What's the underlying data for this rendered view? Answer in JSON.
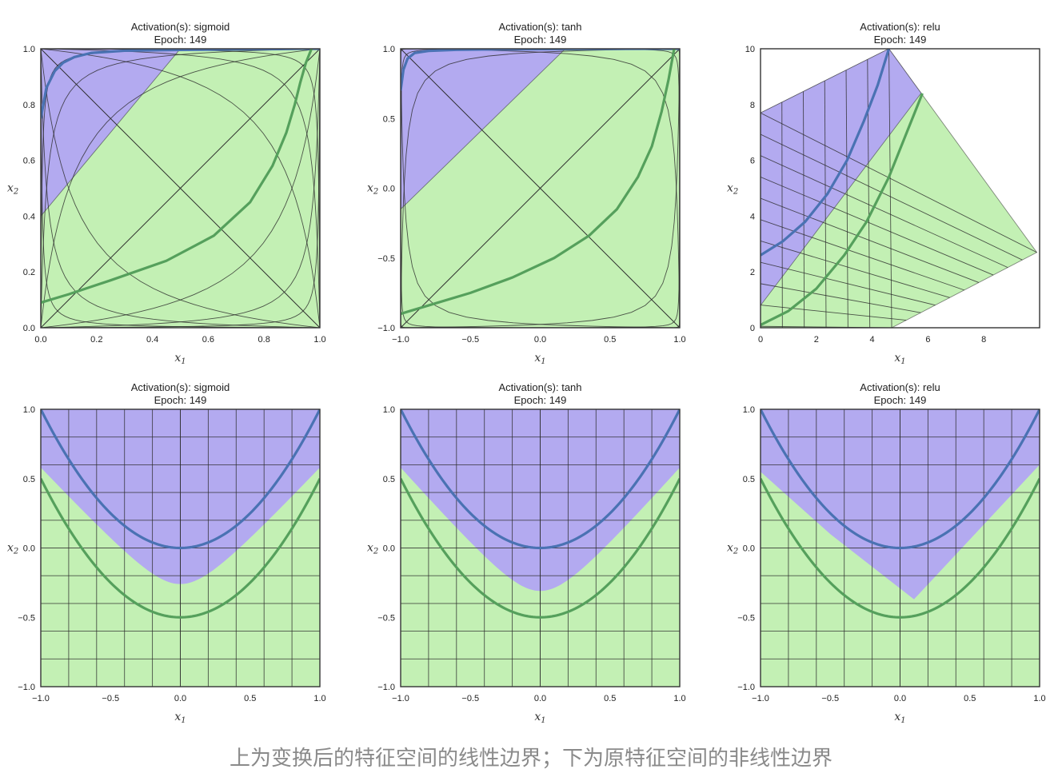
{
  "caption": "上为变换后的特征空间的线性边界；下为原特征空间的非线性边界",
  "colors": {
    "class_blue_region": "#b3aaf0",
    "class_green_region": "#c3f0b4",
    "blue_curve": "#4a72b3",
    "green_curve": "#55a05c",
    "grid_line": "#2b2b2b",
    "frame": "#333333"
  },
  "chart_data": [
    {
      "id": "top-sigmoid",
      "type": "line",
      "space": "transformed",
      "title_line1": "Activation(s): sigmoid",
      "title_line2": "Epoch: 149",
      "xlabel": "x",
      "ylabel": "x",
      "xlim": [
        0,
        1
      ],
      "ylim": [
        0,
        1
      ],
      "xticks": [
        0.0,
        0.2,
        0.4,
        0.6,
        0.8,
        1.0
      ],
      "yticks": [
        0.0,
        0.2,
        0.4,
        0.6,
        0.8,
        1.0
      ],
      "xtick_labels": [
        "0.0",
        "0.2",
        "0.4",
        "0.6",
        "0.8",
        "1.0"
      ],
      "ytick_labels": [
        "0.0",
        "0.2",
        "0.4",
        "0.6",
        "0.8",
        "1.0"
      ],
      "boundary": [
        [
          0,
          0.4
        ],
        [
          0.5,
          1
        ]
      ],
      "blue_region_side": "upper-left",
      "series": [
        {
          "name": "blue-class-curve",
          "x": [
            0.0,
            0.02,
            0.05,
            0.08,
            0.12,
            0.18,
            0.3,
            0.5,
            0.7,
            0.85,
            0.93,
            0.97,
            1.0
          ],
          "y": [
            0.75,
            0.86,
            0.92,
            0.95,
            0.97,
            0.985,
            0.993,
            0.996,
            0.998,
            0.999,
            1.0,
            1.0,
            1.0
          ]
        },
        {
          "name": "green-class-curve",
          "x": [
            0.0,
            0.1,
            0.25,
            0.45,
            0.62,
            0.75,
            0.83,
            0.88,
            0.91,
            0.93,
            0.95,
            0.97
          ],
          "y": [
            0.09,
            0.12,
            0.17,
            0.24,
            0.33,
            0.45,
            0.58,
            0.7,
            0.8,
            0.88,
            0.95,
            1.0
          ]
        }
      ]
    },
    {
      "id": "top-tanh",
      "type": "line",
      "space": "transformed",
      "title_line1": "Activation(s): tanh",
      "title_line2": "Epoch: 149",
      "xlabel": "x",
      "ylabel": "x",
      "xlim": [
        -1,
        1
      ],
      "ylim": [
        -1,
        1
      ],
      "xticks": [
        -1.0,
        -0.5,
        0.0,
        0.5,
        1.0
      ],
      "yticks": [
        -1.0,
        -0.5,
        0.0,
        0.5,
        1.0
      ],
      "xtick_labels": [
        "−1.0",
        "−0.5",
        "0.0",
        "0.5",
        "1.0"
      ],
      "ytick_labels": [
        "−1.0",
        "−0.5",
        "0.0",
        "0.5",
        "1.0"
      ],
      "boundary": [
        [
          -1,
          -0.15
        ],
        [
          0.18,
          1
        ]
      ],
      "blue_region_side": "upper-left",
      "series": [
        {
          "name": "blue-class-curve",
          "x": [
            -1.0,
            -0.98,
            -0.95,
            -0.9,
            -0.8,
            -0.6,
            -0.3,
            0.0,
            0.4,
            0.8,
            1.0
          ],
          "y": [
            0.7,
            0.85,
            0.93,
            0.97,
            0.985,
            0.993,
            0.996,
            0.998,
            0.999,
            1.0,
            1.0
          ]
        },
        {
          "name": "green-class-curve",
          "x": [
            -1.0,
            -0.8,
            -0.5,
            -0.2,
            0.1,
            0.35,
            0.55,
            0.7,
            0.8,
            0.87,
            0.92,
            0.96
          ],
          "y": [
            -0.9,
            -0.84,
            -0.75,
            -0.64,
            -0.5,
            -0.34,
            -0.15,
            0.08,
            0.3,
            0.55,
            0.78,
            1.0
          ]
        }
      ]
    },
    {
      "id": "top-relu",
      "type": "line",
      "space": "transformed",
      "title_line1": "Activation(s): relu",
      "title_line2": "Epoch: 149",
      "xlabel": "x",
      "ylabel": "x",
      "xlim": [
        0,
        10
      ],
      "ylim": [
        0,
        10
      ],
      "xticks": [
        0,
        2,
        4,
        6,
        8
      ],
      "yticks": [
        0,
        2,
        4,
        6,
        8,
        10
      ],
      "xtick_labels": [
        "0",
        "2",
        "4",
        "6",
        "8"
      ],
      "ytick_labels": [
        "0",
        "2",
        "4",
        "6",
        "8",
        "10"
      ],
      "boundary": [
        [
          0,
          0.8
        ],
        [
          5.9,
          8.6
        ]
      ],
      "blue_region_side": "upper-left",
      "series": [
        {
          "name": "blue-class-curve",
          "x": [
            0,
            0.8,
            1.6,
            2.4,
            3.1,
            3.7,
            4.2,
            4.6
          ],
          "y": [
            2.6,
            3.1,
            3.8,
            4.8,
            6.0,
            7.4,
            8.7,
            10.0
          ]
        },
        {
          "name": "green-class-curve",
          "x": [
            0,
            1.0,
            2.0,
            3.0,
            3.8,
            4.6,
            5.2,
            5.8
          ],
          "y": [
            0.1,
            0.6,
            1.4,
            2.6,
            3.8,
            5.4,
            6.9,
            8.4
          ]
        }
      ]
    },
    {
      "id": "bottom-sigmoid",
      "type": "line",
      "space": "original",
      "title_line1": "Activation(s): sigmoid",
      "title_line2": "Epoch: 149",
      "xlabel": "x",
      "ylabel": "x",
      "xlim": [
        -1,
        1
      ],
      "ylim": [
        -1,
        1
      ],
      "xticks": [
        -1.0,
        -0.5,
        0.0,
        0.5,
        1.0
      ],
      "yticks": [
        -1.0,
        -0.5,
        0.0,
        0.5,
        1.0
      ],
      "xtick_labels": [
        "−1.0",
        "−0.5",
        "0.0",
        "0.5",
        "1.0"
      ],
      "ytick_labels": [
        "−1.0",
        "−0.5",
        "0.0",
        "0.5",
        "1.0"
      ],
      "boundary_min": -0.26,
      "boundary_edge": 0.58,
      "boundary_shape": "smooth-v",
      "series": [
        {
          "name": "blue-class-curve",
          "formula": "y = x^2"
        },
        {
          "name": "green-class-curve",
          "formula": "y = x^2 - 0.5"
        }
      ]
    },
    {
      "id": "bottom-tanh",
      "type": "line",
      "space": "original",
      "title_line1": "Activation(s): tanh",
      "title_line2": "Epoch: 149",
      "xlabel": "x",
      "ylabel": "x",
      "xlim": [
        -1,
        1
      ],
      "ylim": [
        -1,
        1
      ],
      "xticks": [
        -1.0,
        -0.5,
        0.0,
        0.5,
        1.0
      ],
      "yticks": [
        -1.0,
        -0.5,
        0.0,
        0.5,
        1.0
      ],
      "xtick_labels": [
        "−1.0",
        "−0.5",
        "0.0",
        "0.5",
        "1.0"
      ],
      "ytick_labels": [
        "−1.0",
        "−0.5",
        "0.0",
        "0.5",
        "1.0"
      ],
      "boundary_min": -0.31,
      "boundary_edge": 0.58,
      "boundary_shape": "smooth-v",
      "series": [
        {
          "name": "blue-class-curve",
          "formula": "y = x^2"
        },
        {
          "name": "green-class-curve",
          "formula": "y = x^2 - 0.5"
        }
      ]
    },
    {
      "id": "bottom-relu",
      "type": "line",
      "space": "original",
      "title_line1": "Activation(s): relu",
      "title_line2": "Epoch: 149",
      "xlabel": "x",
      "ylabel": "x",
      "xlim": [
        -1,
        1
      ],
      "ylim": [
        -1,
        1
      ],
      "xticks": [
        -1.0,
        -0.5,
        0.0,
        0.5,
        1.0
      ],
      "yticks": [
        -1.0,
        -0.5,
        0.0,
        0.5,
        1.0
      ],
      "xtick_labels": [
        "−1.0",
        "−0.5",
        "0.0",
        "0.5",
        "1.0"
      ],
      "ytick_labels": [
        "−1.0",
        "−0.5",
        "0.0",
        "0.5",
        "1.0"
      ],
      "boundary_polyline": [
        [
          -1,
          0.55
        ],
        [
          -0.5,
          0.1
        ],
        [
          0.1,
          -0.37
        ],
        [
          1,
          0.6
        ]
      ],
      "boundary_shape": "piecewise-linear",
      "series": [
        {
          "name": "blue-class-curve",
          "formula": "y = x^2"
        },
        {
          "name": "green-class-curve",
          "formula": "y = x^2 - 0.5"
        }
      ]
    }
  ]
}
